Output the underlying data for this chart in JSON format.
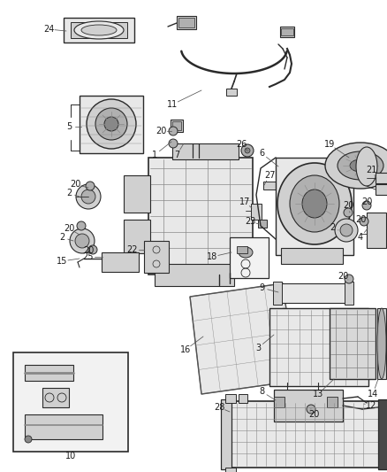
{
  "bg_color": "#ffffff",
  "fig_width": 4.38,
  "fig_height": 5.33,
  "dpi": 100,
  "lc": "#2a2a2a",
  "lc2": "#555555",
  "gray1": "#e8e8e8",
  "gray2": "#d0d0d0",
  "gray3": "#b0b0b0",
  "gray4": "#888888",
  "gray5": "#f2f2f2",
  "dark": "#404040",
  "label_fontsize": 7.0,
  "label_color": "#1a1a1a"
}
